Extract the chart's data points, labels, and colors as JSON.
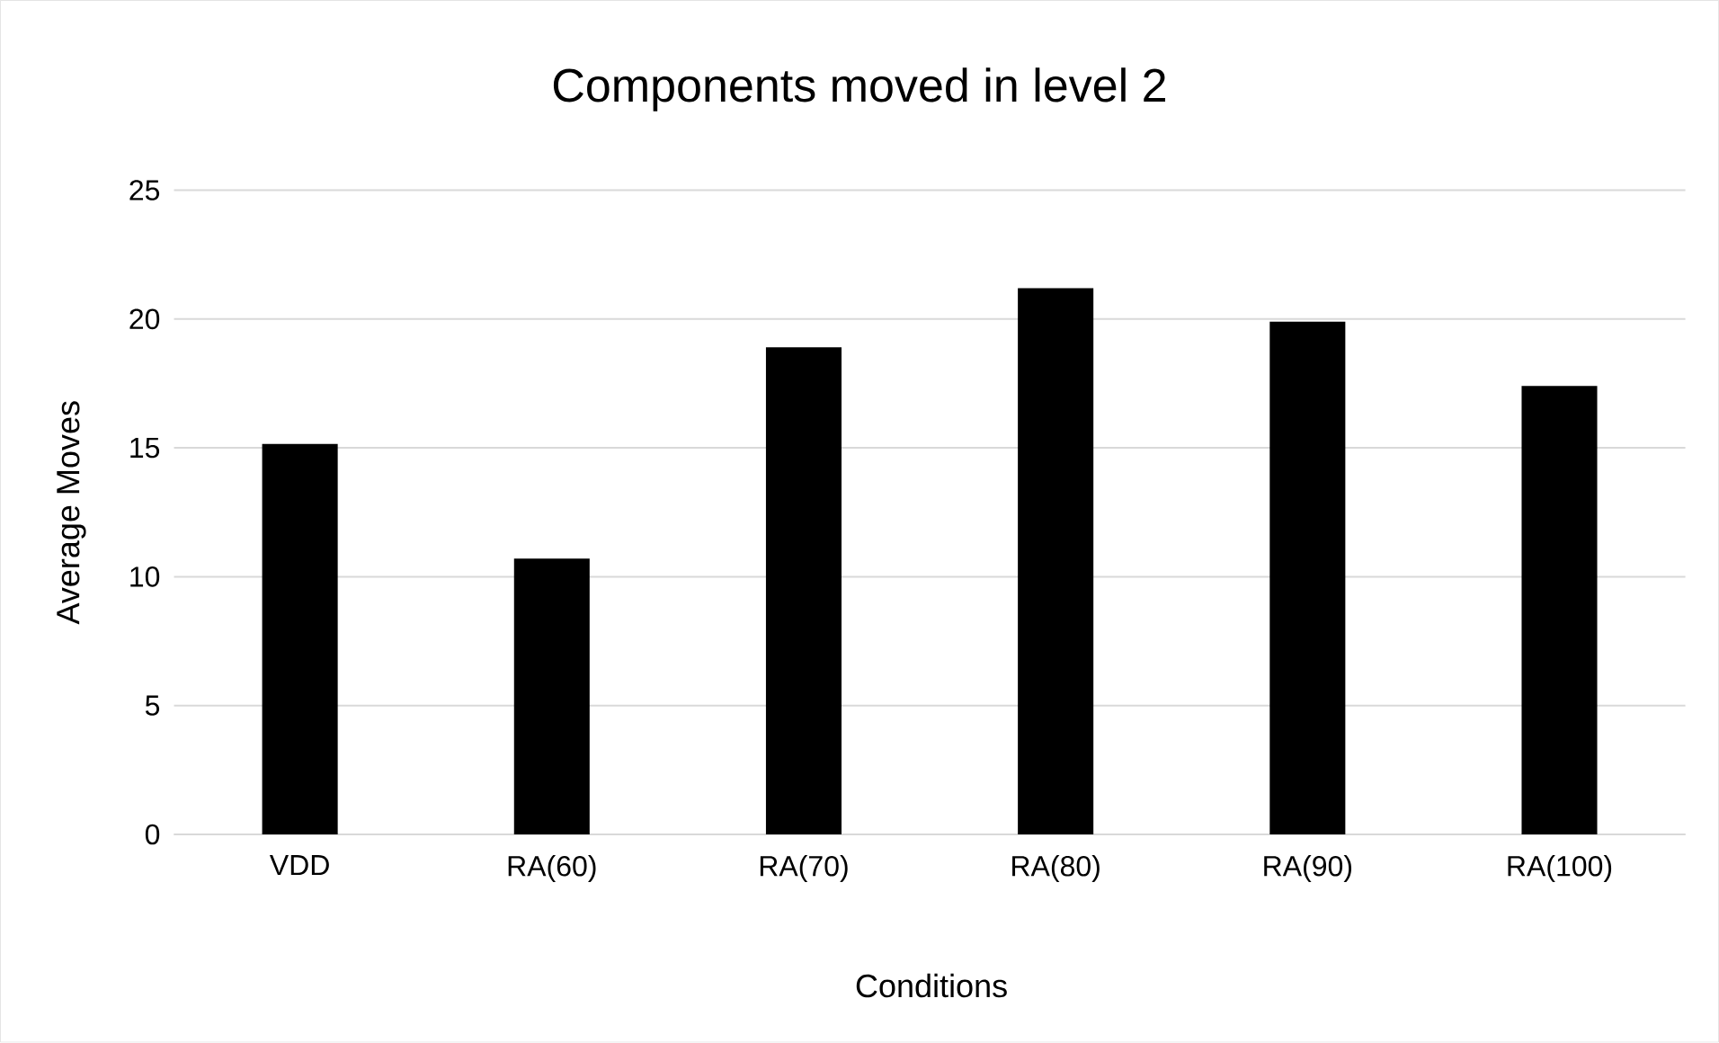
{
  "chart_data": {
    "type": "bar",
    "title": "Components moved in level 2",
    "xlabel": "Conditions",
    "ylabel": "Average Moves",
    "categories": [
      "VDD",
      "RA(60)",
      "RA(70)",
      "RA(80)",
      "RA(90)",
      "RA(100)"
    ],
    "values": [
      15.15,
      10.7,
      18.9,
      21.2,
      19.9,
      17.4
    ],
    "color": "#000000",
    "ylim": [
      0,
      25
    ],
    "yticks": [
      0,
      5,
      10,
      15,
      20,
      25
    ],
    "grid": "y"
  }
}
